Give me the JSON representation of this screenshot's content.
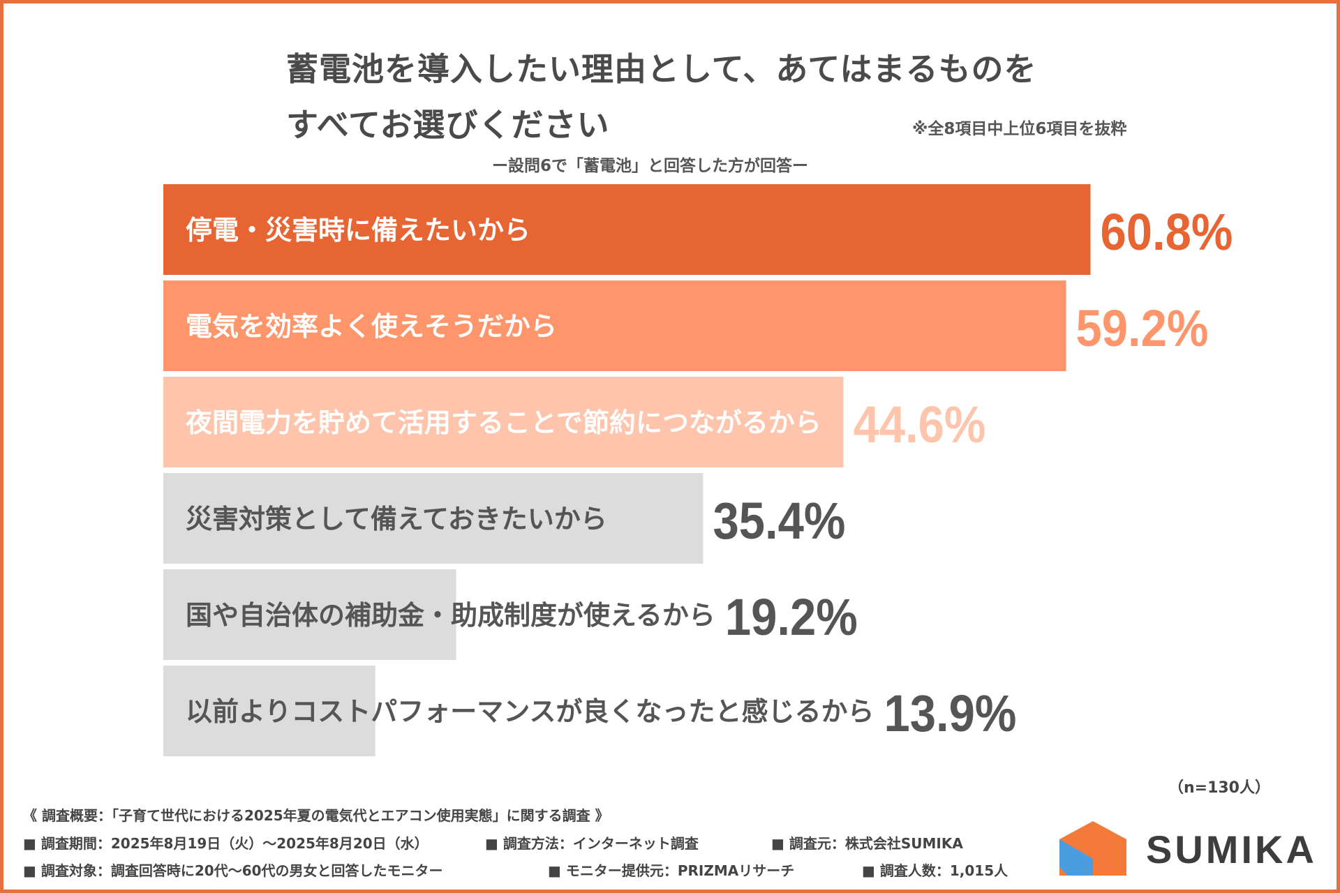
{
  "title": {
    "line1": "蓄電池を導入したい理由として、あてはまるものを",
    "line2": "すべてお選びください"
  },
  "note": "※全8項目中上位6項目を抜粋",
  "subtitle": "ー設問6で「蓄電池」と回答した方が回答ー",
  "sample_size": "（n=130人）",
  "colors": {
    "border": "#e8703f",
    "bar_1": "#e66533",
    "bar_2": "#ff956b",
    "bar_3": "#ffc4ac",
    "bar_gray": "#dcdcdc",
    "pct_gray": "#555555",
    "logo_orange": "#f47a3a",
    "logo_blue": "#4a9ee0"
  },
  "chart_data": {
    "type": "bar",
    "orientation": "horizontal",
    "title": "蓄電池を導入したい理由として、あてはまるものをすべてお選びください",
    "categories": [
      "停電・災害時に備えたいから",
      "電気を効率よく使えそうだから",
      "夜間電力を貯めて活用することで節約につながるから",
      "災害対策として備えておきたいから",
      "国や自治体の補助金・助成制度が使えるから",
      "以前よりコストパフォーマンスが良くなったと感じるから"
    ],
    "values": [
      60.8,
      59.2,
      44.6,
      35.4,
      19.2,
      13.9
    ],
    "value_labels": [
      "60.8%",
      "59.2%",
      "44.6%",
      "35.4%",
      "19.2%",
      "13.9%"
    ],
    "unit": "%",
    "xlim": [
      0,
      100
    ],
    "grid": false
  },
  "footer": {
    "line1": "《 調査概要：「子育て世代における2025年夏の電気代とエアコン使用実態」に関する調査 》",
    "line2a": "■ 調査期間：2025年8月19日（火）～2025年8月20日（水）",
    "line2b": "■ 調査方法：インターネット調査",
    "line2c": "■ 調査元：株式会社SUMIKA",
    "line3a": "■ 調査対象：調査回答時に20代～60代の男女と回答したモニター",
    "line3b": "■ モニター提供元：PRIZMAリサーチ",
    "line3c": "■ 調査人数：1,015人"
  },
  "logo": {
    "text": "SUMIKA"
  }
}
